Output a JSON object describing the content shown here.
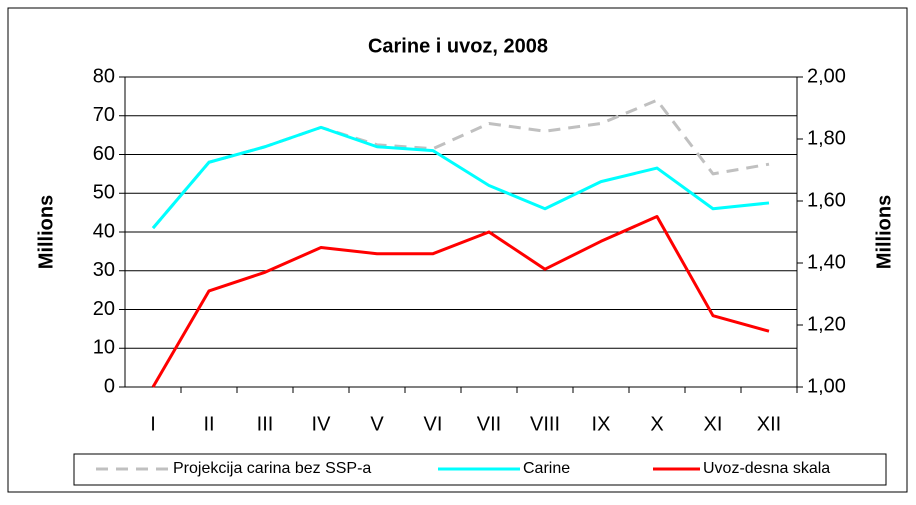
{
  "chart_data": {
    "type": "line",
    "title": "Carine i uvoz, 2008",
    "y_label": "Millions",
    "y2_label": "Millions",
    "categories": [
      "I",
      "II",
      "III",
      "IV",
      "V",
      "VI",
      "VII",
      "VIII",
      "IX",
      "X",
      "XI",
      "XII"
    ],
    "series": [
      {
        "name": "Projekcija carina bez SSP-a",
        "color": "#c0c0c0",
        "line_style": "dashed",
        "values": [
          41,
          58,
          62,
          67,
          62.5,
          61.5,
          68,
          66,
          68,
          74,
          55,
          57.5
        ]
      },
      {
        "name": "Carine",
        "color": "#00ffff",
        "line_style": "solid",
        "values": [
          41,
          58,
          62,
          67,
          62,
          61,
          52,
          46,
          53,
          56.5,
          46,
          47.5
        ]
      },
      {
        "name": "Uvoz-desna skala",
        "color": "#ff0000",
        "line_style": "solid",
        "axis": "y2",
        "values": [
          1.0,
          1.31,
          1.37,
          1.45,
          1.43,
          1.43,
          1.5,
          1.38,
          1.47,
          1.55,
          1.23,
          1.18
        ]
      }
    ],
    "ylim": [
      0,
      80
    ],
    "yticks": [
      0,
      10,
      20,
      30,
      40,
      50,
      60,
      70,
      80
    ],
    "y2lim": [
      1.0,
      2.0
    ],
    "y2ticks": [
      {
        "value": 1.0,
        "label": "1,00"
      },
      {
        "value": 1.2,
        "label": "1,20"
      },
      {
        "value": 1.4,
        "label": "1,40"
      },
      {
        "value": 1.6,
        "label": "1,60"
      },
      {
        "value": 1.8,
        "label": "1,80"
      },
      {
        "value": 2.0,
        "label": "2,00"
      }
    ],
    "grid": true,
    "legend": "bottom"
  }
}
